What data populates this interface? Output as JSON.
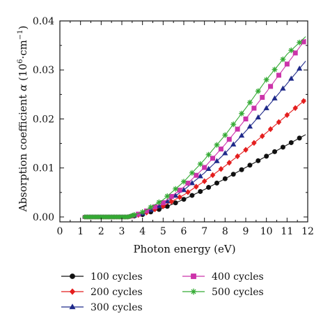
{
  "chart_data": {
    "type": "line",
    "xlabel": "Photon energy (eV)",
    "ylabel_parts": {
      "prefix": "Absorption coefficient ",
      "symbol": "α",
      "open": " (10",
      "exponent": "6",
      "middle": "·cm",
      "neg_exponent": "−1",
      "close": ")"
    },
    "xlim": [
      0,
      12
    ],
    "ylim": [
      -0.001,
      0.04
    ],
    "x_ticks": [
      "0",
      "1",
      "2",
      "3",
      "4",
      "5",
      "6",
      "7",
      "8",
      "9",
      "10",
      "11",
      "12"
    ],
    "y_ticks": [
      "0.00",
      "0.01",
      "0.02",
      "0.03",
      "0.04"
    ],
    "grid": false,
    "legend_position": "below",
    "series": [
      {
        "name": "100 cycles",
        "color": "#111111",
        "marker": "circle",
        "x": [
          1.2,
          3.3,
          4.0,
          5.0,
          6.0,
          7.0,
          8.0,
          9.0,
          10.0,
          11.0,
          11.9
        ],
        "y": [
          0.0,
          0.0,
          0.0005,
          0.0018,
          0.0036,
          0.0056,
          0.0078,
          0.0101,
          0.0124,
          0.0147,
          0.0168
        ]
      },
      {
        "name": "200 cycles",
        "color": "#e41e1e",
        "marker": "diamond",
        "x": [
          1.2,
          3.3,
          4.0,
          5.0,
          6.0,
          7.0,
          8.0,
          9.0,
          10.0,
          11.0,
          11.9
        ],
        "y": [
          0.0,
          0.0,
          0.0006,
          0.0022,
          0.0045,
          0.0073,
          0.0104,
          0.0137,
          0.0172,
          0.0208,
          0.024
        ]
      },
      {
        "name": "300 cycles",
        "color": "#1f2a8a",
        "marker": "triangle",
        "x": [
          1.2,
          3.3,
          4.0,
          5.0,
          6.0,
          7.0,
          8.0,
          9.0,
          10.0,
          11.0,
          11.9
        ],
        "y": [
          0.0,
          0.0,
          0.0007,
          0.0026,
          0.0055,
          0.009,
          0.013,
          0.0175,
          0.0222,
          0.0272,
          0.0318
        ]
      },
      {
        "name": "400 cycles",
        "color": "#cc33aa",
        "marker": "square",
        "x": [
          1.2,
          3.3,
          4.0,
          5.0,
          6.0,
          7.0,
          8.0,
          9.0,
          10.0,
          11.0,
          11.9
        ],
        "y": [
          0.0,
          0.0,
          0.0008,
          0.0029,
          0.0061,
          0.0101,
          0.0148,
          0.02,
          0.0255,
          0.0312,
          0.0363
        ]
      },
      {
        "name": "500 cycles",
        "color": "#33aa33",
        "marker": "star",
        "x": [
          1.2,
          3.3,
          4.0,
          5.0,
          6.0,
          7.0,
          8.0,
          9.0,
          10.0,
          11.0,
          11.9
        ],
        "y": [
          0.0,
          0.0,
          0.001,
          0.0035,
          0.0072,
          0.0117,
          0.0167,
          0.0222,
          0.028,
          0.0332,
          0.0368
        ]
      }
    ]
  }
}
